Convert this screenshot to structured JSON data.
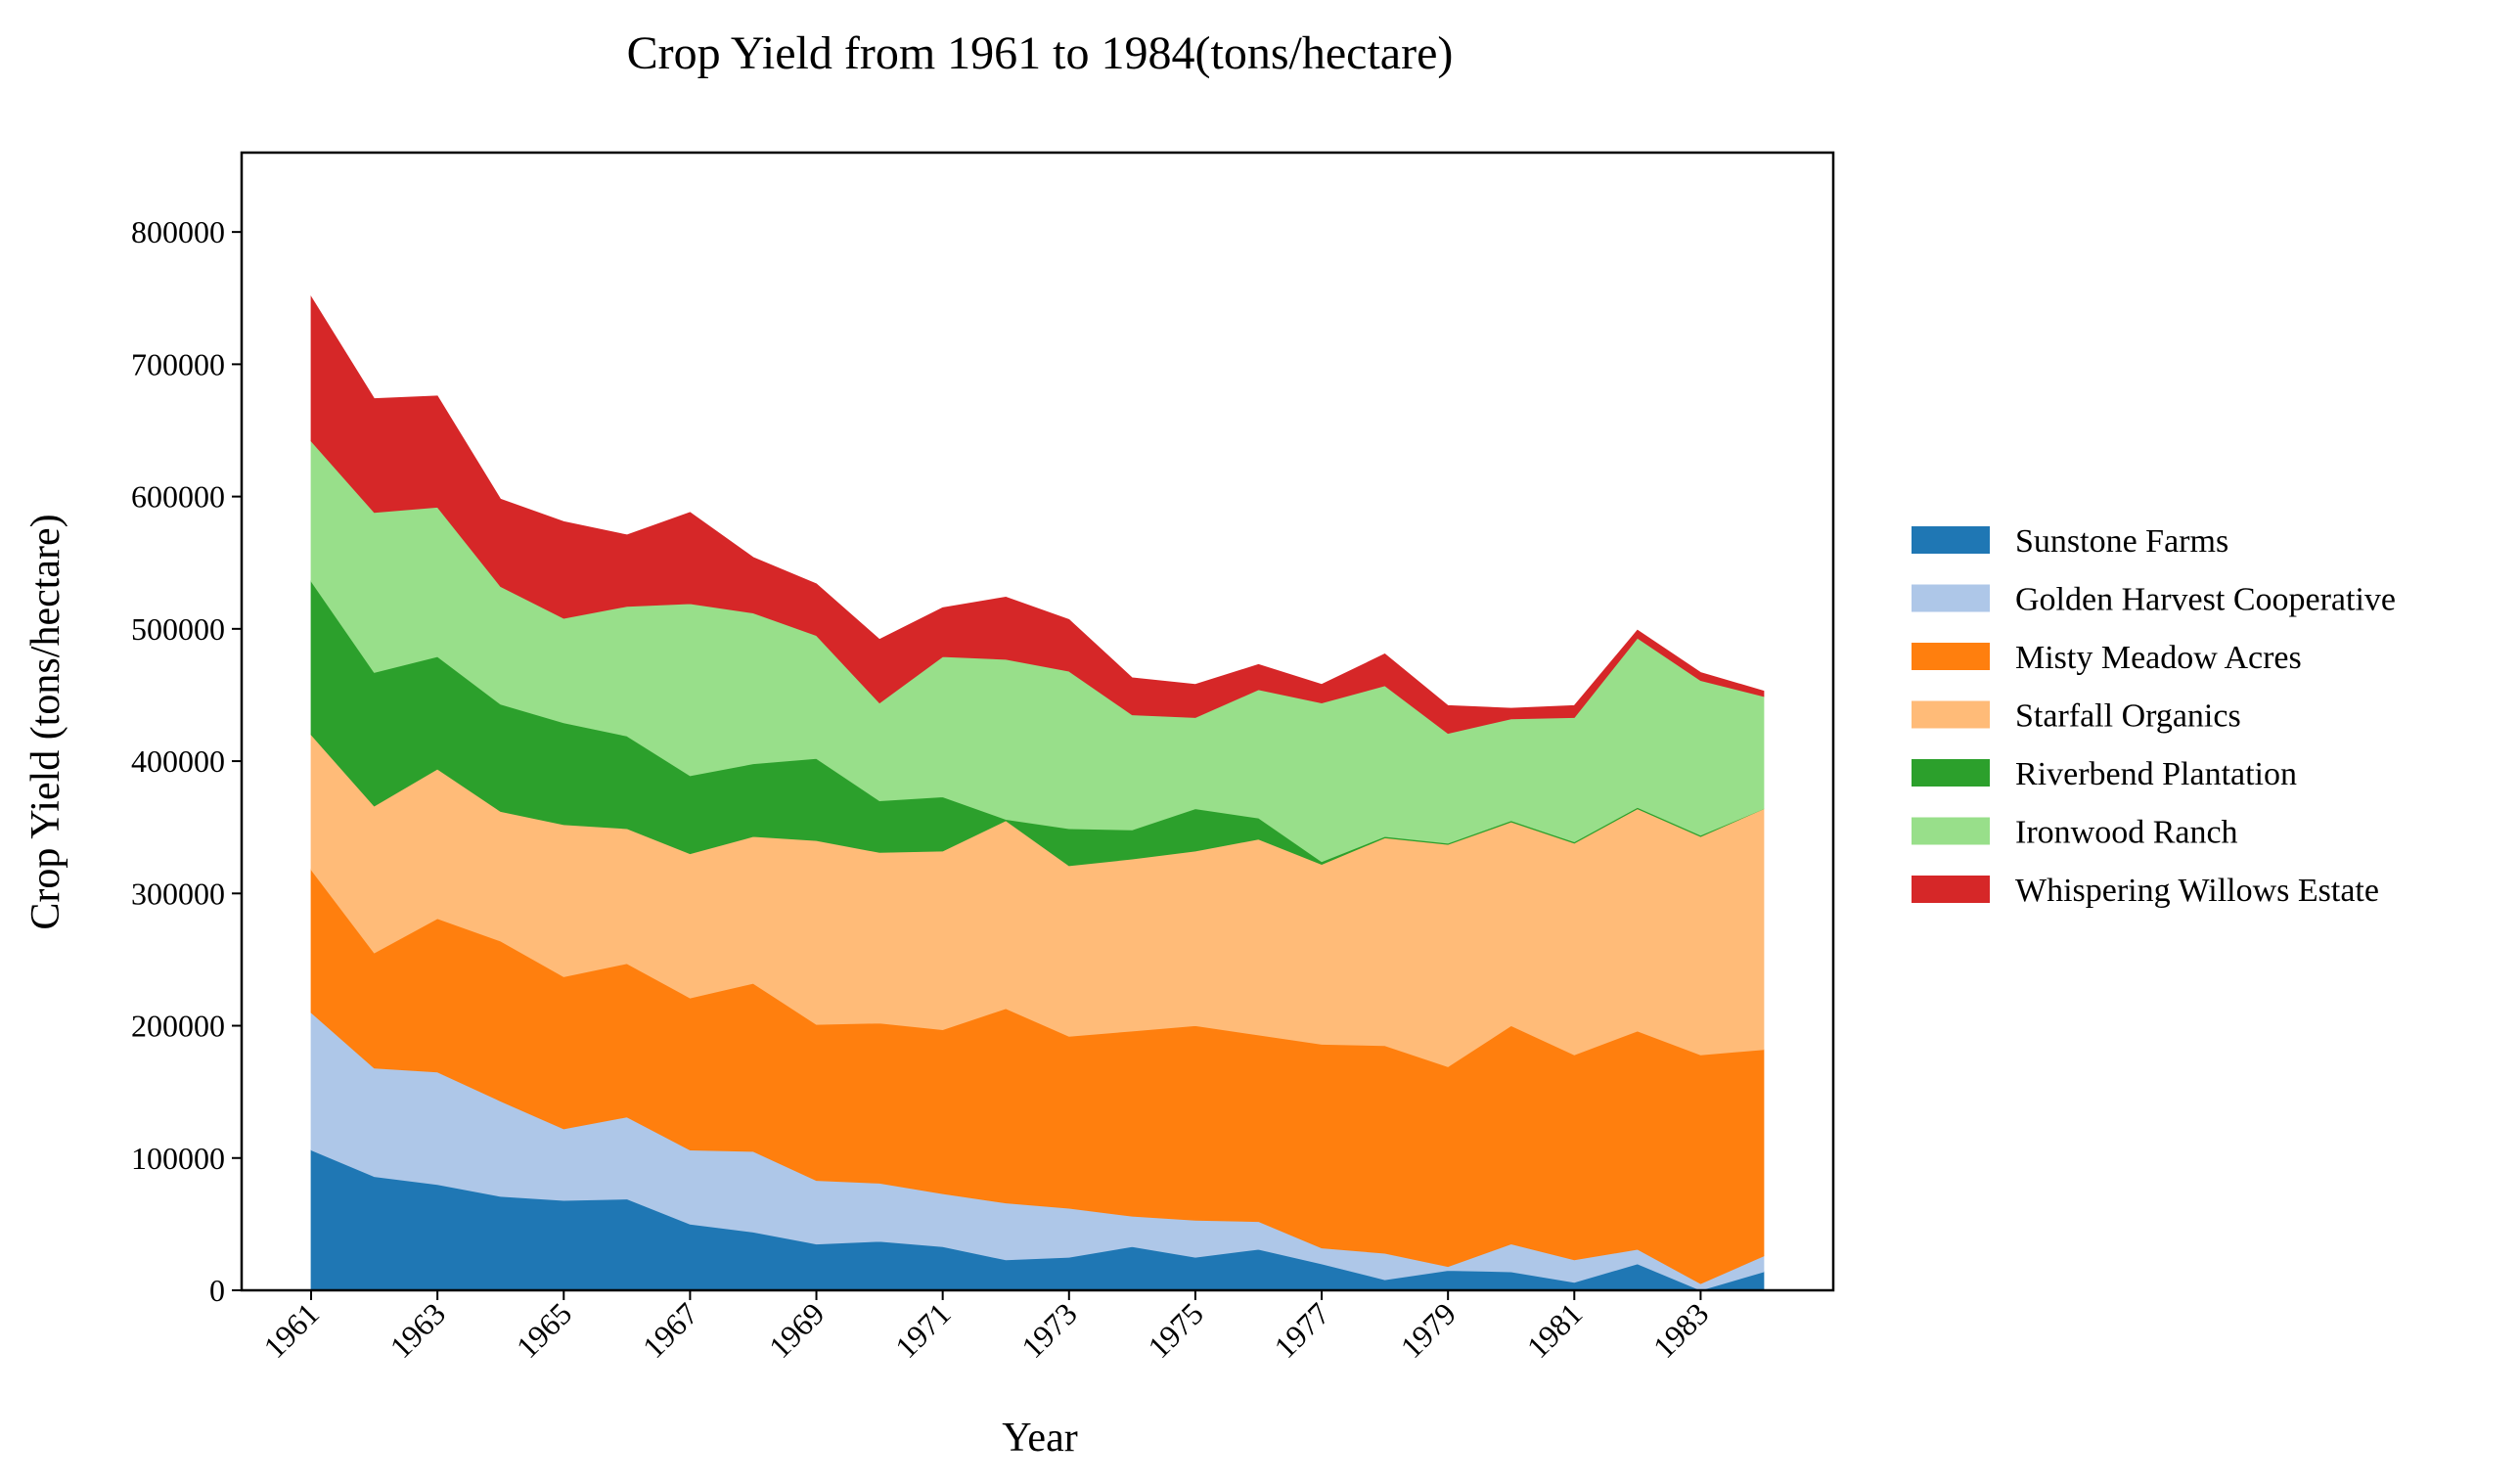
{
  "chart_data": {
    "type": "area",
    "stacked": true,
    "title": "Crop Yield from 1961 to 1984(tons/hectare)",
    "xlabel": "Year",
    "ylabel": "Crop Yield (tons/hectare)",
    "x": [
      1961,
      1962,
      1963,
      1964,
      1965,
      1966,
      1967,
      1968,
      1969,
      1970,
      1971,
      1972,
      1973,
      1974,
      1975,
      1976,
      1977,
      1978,
      1979,
      1980,
      1981,
      1982,
      1983,
      1984
    ],
    "xticks": [
      "1961",
      "1963",
      "1965",
      "1967",
      "1969",
      "1971",
      "1973",
      "1975",
      "1977",
      "1979",
      "1981",
      "1983"
    ],
    "yticks": [
      "0",
      "100000",
      "200000",
      "300000",
      "400000",
      "500000",
      "600000",
      "700000",
      "800000"
    ],
    "ylim": [
      0,
      860000
    ],
    "xlim": [
      1959.9,
      1985.1
    ],
    "legend_position": "right",
    "grid": false,
    "series": [
      {
        "name": "Sunstone Farms",
        "color": "#1f77b4",
        "values": [
          106000,
          86000,
          80000,
          71000,
          68000,
          69000,
          50000,
          44000,
          35000,
          37000,
          33000,
          23000,
          25000,
          33000,
          25000,
          31000,
          20000,
          8000,
          15000,
          14000,
          6000,
          20000,
          0,
          14000
        ]
      },
      {
        "name": "Golden Harvest Cooperative",
        "color": "#aec7e8",
        "values": [
          104000,
          82000,
          85000,
          72000,
          54000,
          62000,
          56000,
          61000,
          48000,
          44000,
          40000,
          43000,
          37000,
          23000,
          28000,
          21000,
          12000,
          20000,
          3000,
          21000,
          17000,
          11000,
          5000,
          12000
        ]
      },
      {
        "name": "Misty Meadow Acres",
        "color": "#ff7f0e",
        "values": [
          108000,
          87000,
          116000,
          121000,
          115000,
          116000,
          115000,
          127000,
          118000,
          121000,
          124000,
          147000,
          130000,
          140000,
          147000,
          141000,
          154000,
          157000,
          151000,
          165000,
          155000,
          165000,
          173000,
          156000
        ]
      },
      {
        "name": "Starfall Organics",
        "color": "#ffbb78",
        "values": [
          102000,
          111000,
          113000,
          98000,
          115000,
          102000,
          109000,
          111000,
          139000,
          129000,
          135000,
          142000,
          129000,
          130000,
          132000,
          148000,
          136000,
          157000,
          168000,
          154000,
          160000,
          168000,
          165000,
          182000
        ]
      },
      {
        "name": "Riverbend Plantation",
        "color": "#2ca02c",
        "values": [
          116000,
          101000,
          85000,
          81000,
          77000,
          70000,
          59000,
          55000,
          62000,
          39000,
          41000,
          1000,
          28000,
          22000,
          32000,
          16000,
          2000,
          1000,
          1000,
          1000,
          1000,
          1000,
          1000,
          0
        ]
      },
      {
        "name": "Ironwood Ranch",
        "color": "#98df8a",
        "values": [
          106000,
          121000,
          113000,
          89000,
          79000,
          98000,
          130000,
          114000,
          93000,
          74000,
          106000,
          121000,
          119000,
          87000,
          69000,
          97000,
          120000,
          114000,
          83000,
          77000,
          94000,
          128000,
          117000,
          85000
        ]
      },
      {
        "name": "Whispering Willows Estate",
        "color": "#d62728",
        "values": [
          109000,
          86000,
          84000,
          66000,
          73000,
          54000,
          69000,
          42000,
          39000,
          48000,
          37000,
          47000,
          39000,
          28000,
          25000,
          19000,
          14000,
          24000,
          21000,
          8000,
          9000,
          6000,
          6000,
          4000
        ]
      }
    ]
  }
}
